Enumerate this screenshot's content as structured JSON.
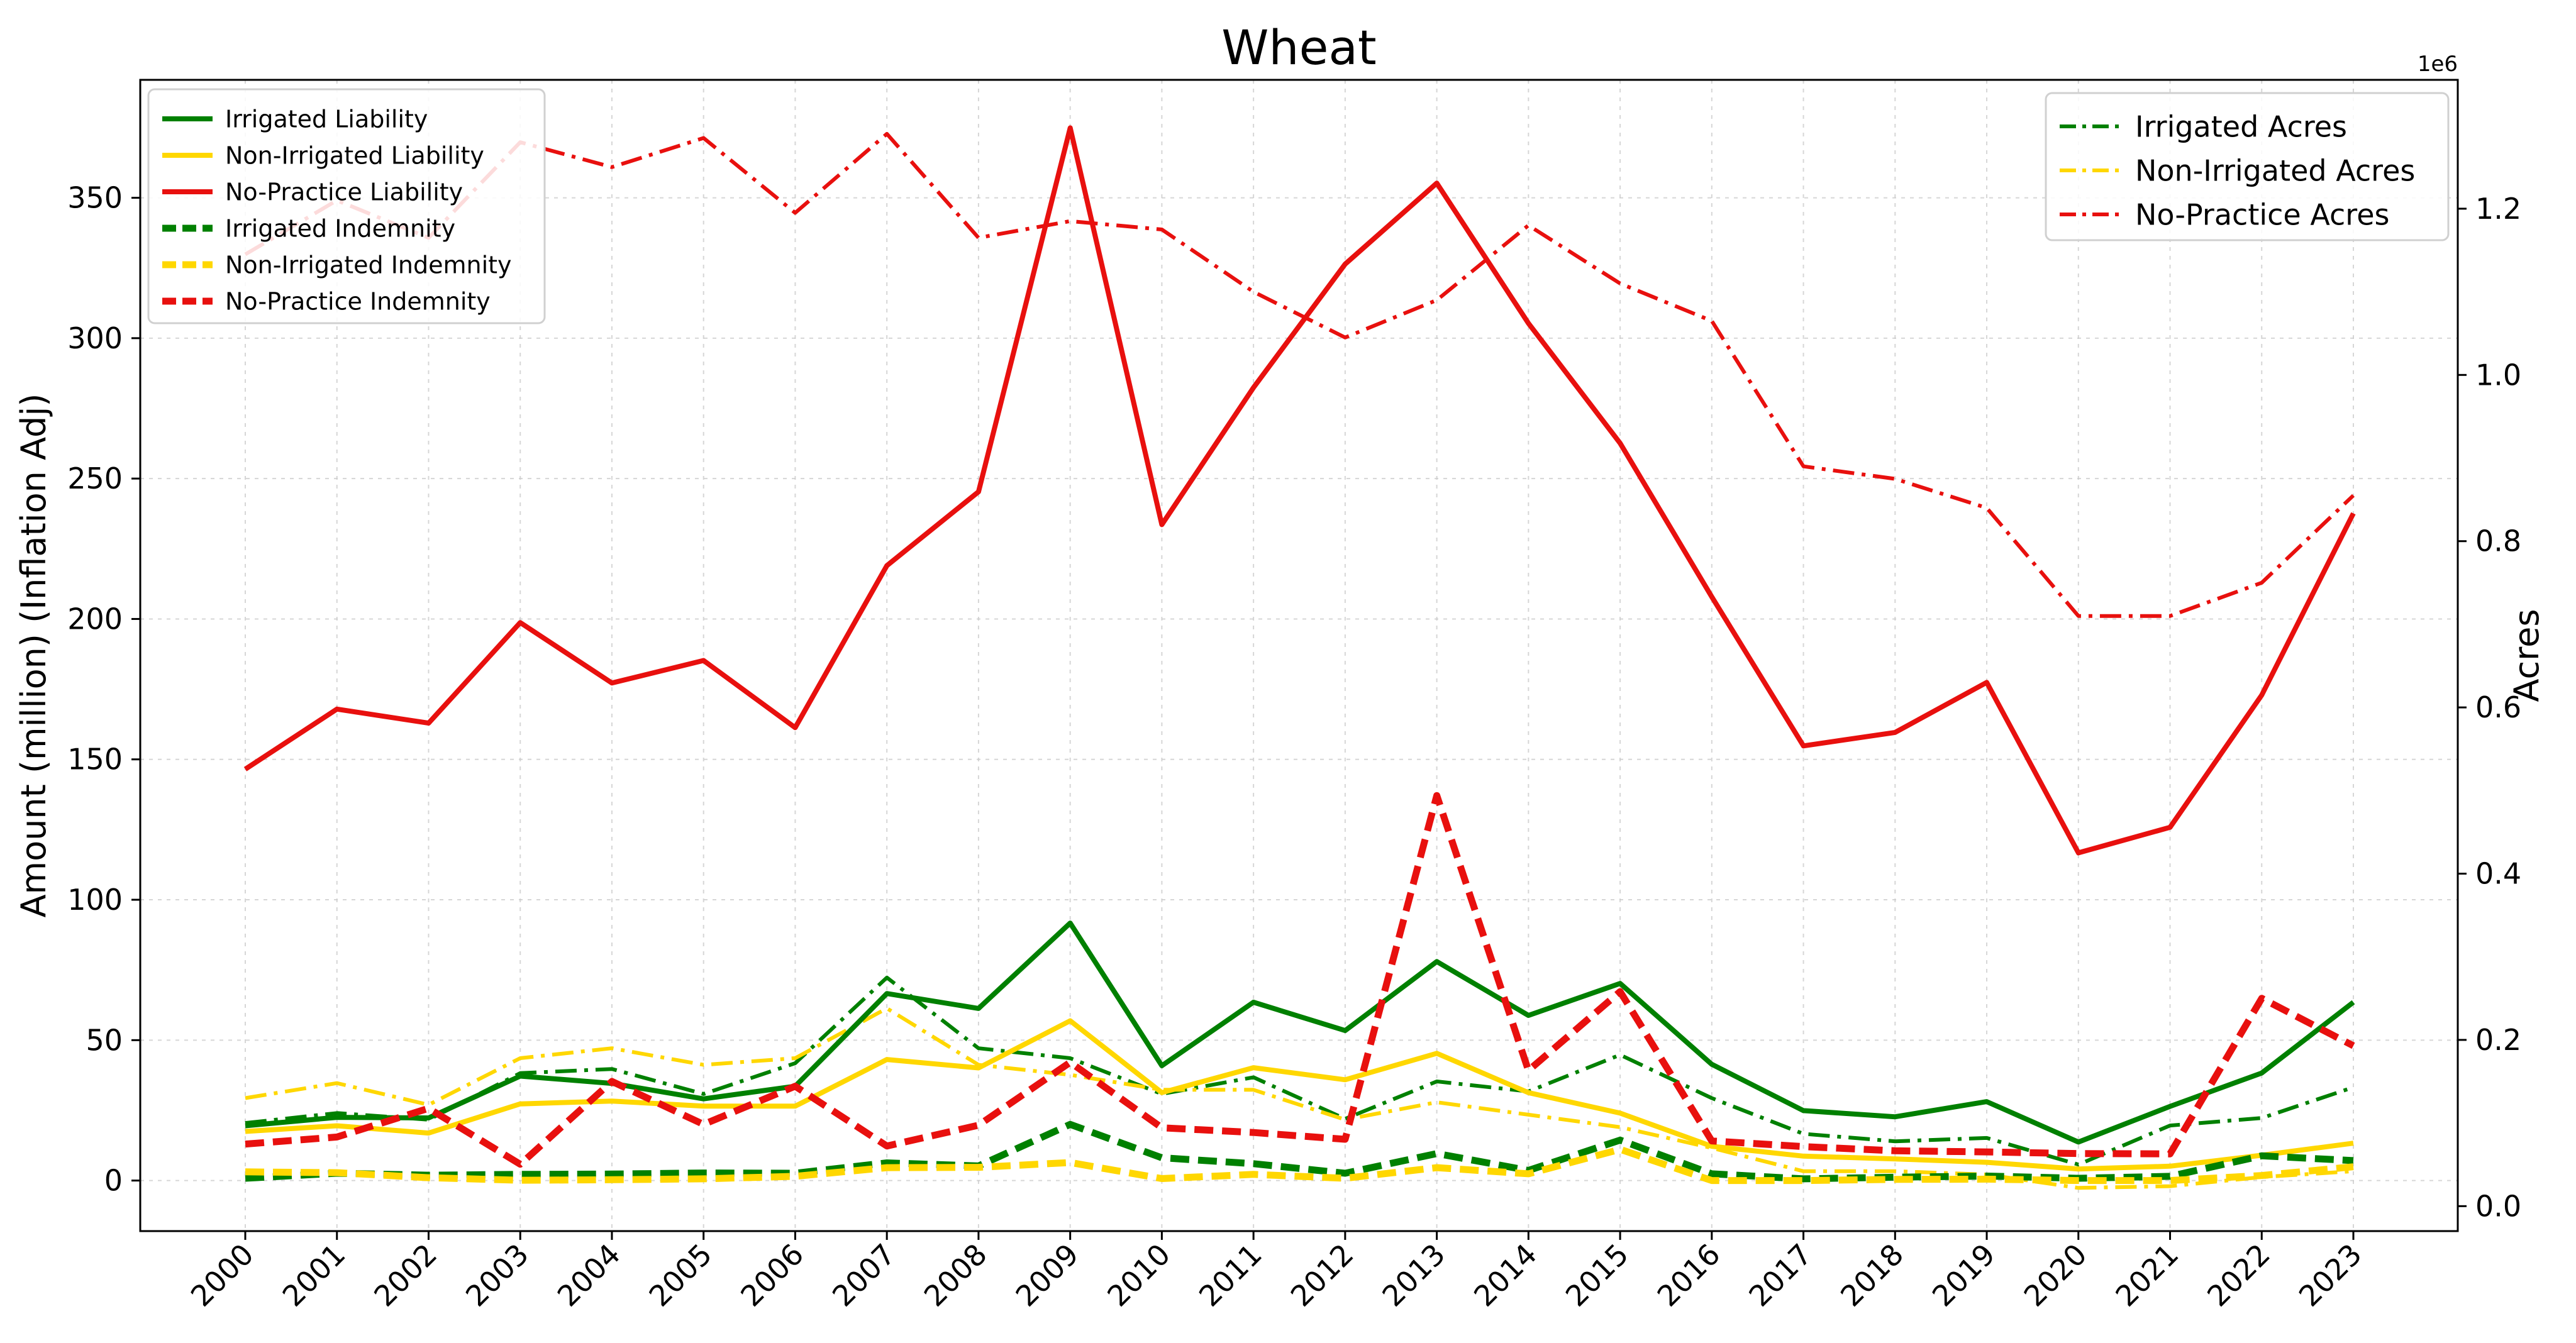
{
  "chart_data": {
    "type": "line",
    "title": "Wheat",
    "xlabel": "",
    "ylabel": "Amount (million) (Inflation Adj)",
    "y2label": "Acres",
    "y2_offset_label": "1e6",
    "categories": [
      "2000",
      "2001",
      "2002",
      "2003",
      "2004",
      "2005",
      "2006",
      "2007",
      "2008",
      "2009",
      "2010",
      "2011",
      "2012",
      "2013",
      "2014",
      "2015",
      "2016",
      "2017",
      "2018",
      "2019",
      "2020",
      "2021",
      "2022",
      "2023"
    ],
    "ylim": [
      -18,
      392
    ],
    "y_ticks": [
      0,
      50,
      100,
      150,
      200,
      250,
      300,
      350
    ],
    "y2lim": [
      -30000,
      1355000
    ],
    "y2_ticks": [
      0,
      200000,
      400000,
      600000,
      800000,
      1000000,
      1200000
    ],
    "y2_tick_labels": [
      "0.0",
      "0.2",
      "0.4",
      "0.6",
      "0.8",
      "1.0",
      "1.2"
    ],
    "grid": true,
    "legend_left_placement": "upper-left",
    "legend_right_placement": "upper-right",
    "series_left": [
      {
        "name": "Irrigated Liability",
        "color": "#008000",
        "dash": "solid",
        "values": [
          19.5,
          22.5,
          22.3,
          37.2,
          34.6,
          29.1,
          33.6,
          66.6,
          61.3,
          91.7,
          40.9,
          63.5,
          53.4,
          78.0,
          58.8,
          70.2,
          41.4,
          24.9,
          22.7,
          28.1,
          13.7,
          26.4,
          38.3,
          63.5
        ]
      },
      {
        "name": "Non-Irrigated Liability",
        "color": "#FFD700",
        "dash": "solid",
        "values": [
          17.5,
          19.5,
          16.9,
          27.3,
          28.3,
          26.5,
          26.5,
          43.1,
          40.1,
          56.9,
          31.3,
          40.2,
          35.9,
          45.3,
          31.3,
          24.0,
          12.2,
          8.7,
          7.7,
          6.5,
          4.1,
          5.1,
          9.0,
          13.3
        ]
      },
      {
        "name": "No-Practice Liability",
        "color": "#E8100E",
        "dash": "solid",
        "values": [
          146.5,
          167.9,
          162.9,
          198.7,
          177.2,
          185.2,
          161.3,
          219.0,
          245.3,
          374.9,
          233.6,
          282.4,
          326.4,
          355.2,
          305.3,
          262.6,
          207.9,
          154.8,
          159.6,
          177.4,
          116.7,
          125.8,
          172.9,
          237.6
        ]
      },
      {
        "name": "Irrigated Indemnity",
        "color": "#008000",
        "dash": "dashed",
        "values": [
          0.8,
          2.6,
          1.9,
          2.2,
          2.3,
          2.7,
          2.6,
          6.3,
          5.2,
          20.0,
          8.1,
          6.0,
          2.6,
          9.6,
          3.6,
          14.4,
          2.4,
          0.6,
          1.2,
          1.6,
          0.8,
          1.5,
          8.8,
          7.1
        ]
      },
      {
        "name": "Non-Irrigated Indemnity",
        "color": "#FFD700",
        "dash": "dashed",
        "values": [
          3.1,
          2.8,
          1.0,
          0.1,
          0.3,
          0.6,
          1.5,
          4.6,
          4.7,
          6.4,
          0.7,
          2.2,
          0.8,
          4.6,
          2.4,
          11.1,
          0.0,
          0.0,
          0.4,
          0.5,
          0.0,
          0.0,
          1.8,
          4.9
        ]
      },
      {
        "name": "No-Practice Indemnity",
        "color": "#E8100E",
        "dash": "dashed",
        "values": [
          13.0,
          15.5,
          25.7,
          5.8,
          35.3,
          20.0,
          33.6,
          12.3,
          19.7,
          42.1,
          18.8,
          17.1,
          14.7,
          137.1,
          39.2,
          67.3,
          14.1,
          12.1,
          10.6,
          10.2,
          9.6,
          9.5,
          64.9,
          48.0
        ]
      }
    ],
    "series_right": [
      {
        "name": "Irrigated Acres",
        "color": "#008000",
        "dash": "dashdot",
        "values": [
          100000,
          112000,
          104000,
          160000,
          165000,
          135000,
          172000,
          275000,
          190000,
          178000,
          135000,
          155000,
          105000,
          150000,
          138000,
          182000,
          130000,
          87000,
          78000,
          82000,
          50000,
          97000,
          106000,
          143000
        ]
      },
      {
        "name": "Non-Irrigated Acres",
        "color": "#FFD700",
        "dash": "dashdot",
        "values": [
          130000,
          148000,
          122000,
          178000,
          190000,
          170000,
          178000,
          238000,
          170000,
          158000,
          140000,
          140000,
          104000,
          125000,
          110000,
          95000,
          70000,
          42000,
          42000,
          38000,
          22000,
          24000,
          35000,
          42000
        ]
      },
      {
        "name": "No-Practice Acres",
        "color": "#E8100E",
        "dash": "dashdot",
        "values": [
          1145000,
          1210000,
          1165000,
          1280000,
          1250000,
          1285000,
          1195000,
          1290000,
          1165000,
          1185000,
          1175000,
          1100000,
          1045000,
          1090000,
          1180000,
          1110000,
          1065000,
          890000,
          875000,
          840000,
          710000,
          710000,
          750000,
          855000
        ]
      }
    ]
  }
}
